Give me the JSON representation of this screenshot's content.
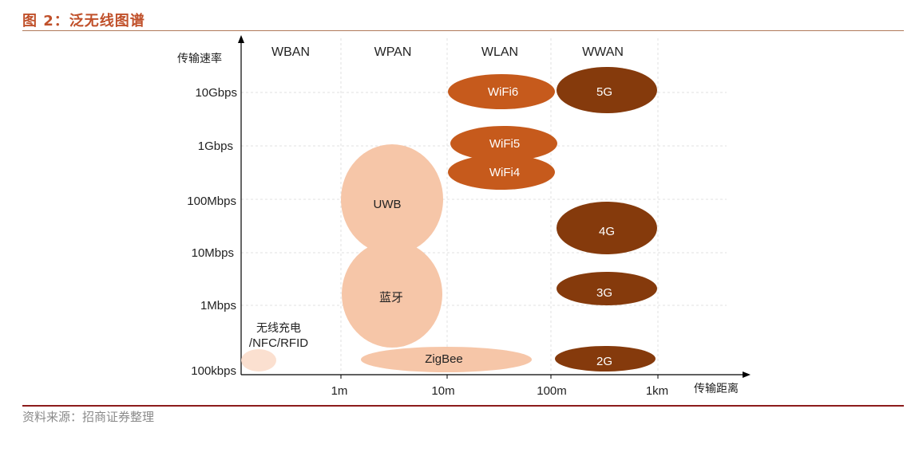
{
  "header": {
    "title": "图 2：泛无线图谱"
  },
  "source": "资料来源：招商证券整理",
  "chart_data": {
    "type": "bubble",
    "ylabel": "传输速率",
    "xlabel": "传输距离",
    "y_ticks": [
      "100kbps",
      "1Mbps",
      "10Mbps",
      "100Mbps",
      "1Gbps",
      "10Gbps"
    ],
    "x_ticks": [
      "1m",
      "10m",
      "100m",
      "1km"
    ],
    "categories": [
      "WBAN",
      "WPAN",
      "WLAN",
      "WWAN"
    ],
    "bubbles": [
      {
        "name": "WiFi6",
        "category": "WLAN",
        "color": "#c65a1c"
      },
      {
        "name": "5G",
        "category": "WWAN",
        "color": "#853a0c"
      },
      {
        "name": "WiFi5",
        "category": "WLAN",
        "color": "#c65a1c"
      },
      {
        "name": "WiFi4",
        "category": "WLAN",
        "color": "#c65a1c"
      },
      {
        "name": "UWB",
        "category": "WPAN",
        "color": "#f6c6a8"
      },
      {
        "name": "4G",
        "category": "WWAN",
        "color": "#853a0c"
      },
      {
        "name": "蓝牙",
        "category": "WPAN",
        "color": "#f6c6a8"
      },
      {
        "name": "3G",
        "category": "WWAN",
        "color": "#853a0c"
      },
      {
        "name": "ZigBee",
        "category": "WPAN",
        "color": "#f6c6a8"
      },
      {
        "name": "2G",
        "category": "WWAN",
        "color": "#853a0c"
      },
      {
        "name": "NFC",
        "category": "WBAN",
        "color": "#fbe0d0"
      }
    ],
    "annotation": [
      "无线充电",
      "/NFC/RFID"
    ]
  }
}
